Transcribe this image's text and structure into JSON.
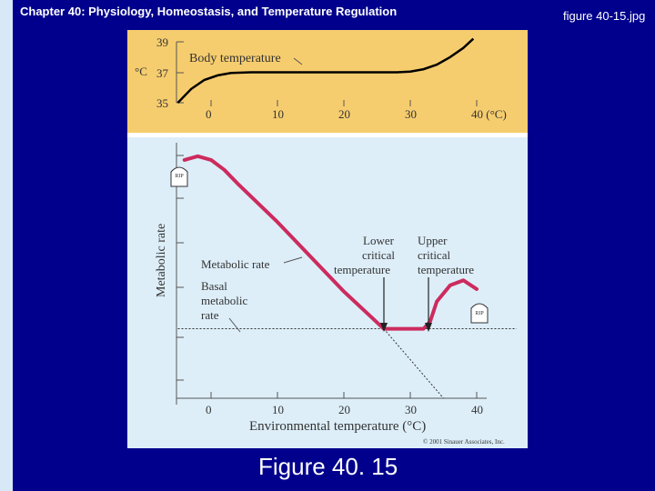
{
  "slide": {
    "header": "Chapter 40: Physiology, Homeostasis, and Temperature Regulation",
    "filename": "figure 40-15.jpg",
    "caption": "Figure 40. 15"
  },
  "colors": {
    "slide_bg": "#00008c",
    "top_panel_bg": "#f6cd6e",
    "bottom_panel_bg": "#ddeef9",
    "curve": "#cc2b5e",
    "text": "#333333"
  },
  "chart_data": [
    {
      "type": "line",
      "panel": "top",
      "xlabel": "",
      "ylabel": "°C",
      "x_ticks": [
        "0",
        "10",
        "20",
        "30",
        "40 (°C)"
      ],
      "y_ticks": [
        "35",
        "37",
        "39"
      ],
      "xlim": [
        -5,
        45
      ],
      "ylim": [
        35,
        39
      ],
      "series": [
        {
          "name": "Body temperature",
          "x": [
            -5,
            -3,
            -1,
            1,
            3,
            6,
            10,
            20,
            28,
            30,
            32,
            34,
            36,
            38,
            39.5
          ],
          "y": [
            35.0,
            35.9,
            36.5,
            36.8,
            36.95,
            37.0,
            37.0,
            37.0,
            37.0,
            37.05,
            37.2,
            37.5,
            38.0,
            38.6,
            39.2
          ]
        }
      ]
    },
    {
      "type": "line",
      "panel": "bottom",
      "xlabel": "Environmental temperature (°C)",
      "ylabel": "Metabolic rate",
      "x_ticks": [
        "0",
        "10",
        "20",
        "30",
        "40"
      ],
      "xlim": [
        -5,
        45
      ],
      "ylim": [
        0,
        10
      ],
      "series": [
        {
          "name": "Metabolic rate",
          "x": [
            -4,
            -2,
            0,
            2,
            4,
            10,
            20,
            25,
            26,
            30,
            32,
            33,
            34,
            36,
            38,
            40
          ],
          "y": [
            9.6,
            9.75,
            9.6,
            9.2,
            8.65,
            7.1,
            4.3,
            3.05,
            2.8,
            2.8,
            2.8,
            3.1,
            3.9,
            4.55,
            4.75,
            4.4
          ]
        },
        {
          "name": "Basal metabolic rate",
          "x": [
            -5,
            46
          ],
          "y": [
            2.8,
            2.8
          ]
        }
      ],
      "annotations": {
        "metabolic_rate": "Metabolic rate",
        "basal_line1": "Basal",
        "basal_line2": "metabolic",
        "basal_line3": "rate",
        "lower_line1": "Lower",
        "lower_line2": "critical",
        "lower_line3": "temperature",
        "upper_line1": "Upper",
        "upper_line2": "critical",
        "upper_line3": "temperature",
        "rip": "RIP",
        "copyright": "© 2001 Sinauer Associates, Inc."
      }
    }
  ]
}
